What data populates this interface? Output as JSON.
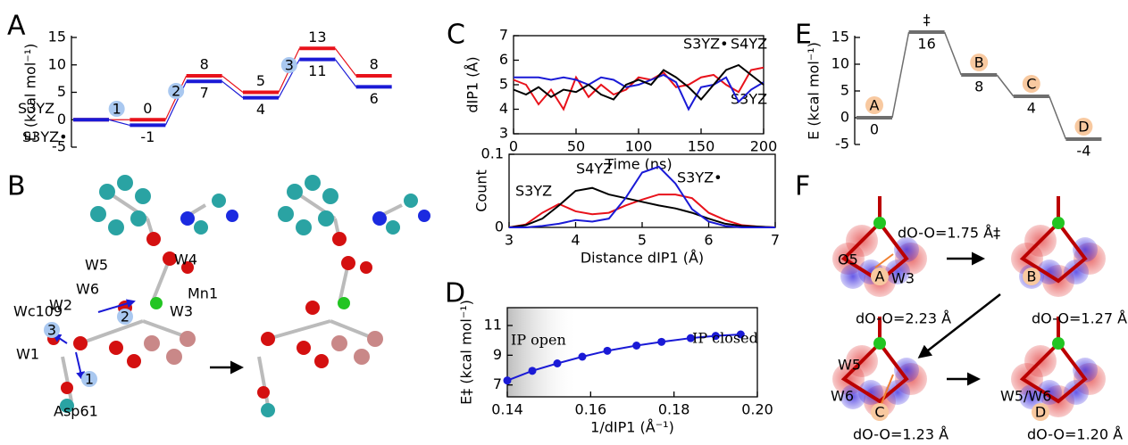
{
  "figure": {
    "panel_labels": [
      "A",
      "B",
      "C",
      "D",
      "E",
      "F"
    ],
    "panel_b": {
      "labels": [
        "W5",
        "W4",
        "W6",
        "W2",
        "Wc109",
        "W1",
        "W3",
        "Mn1",
        "Asp61"
      ],
      "steps": [
        "1",
        "2",
        "3"
      ]
    },
    "panel_f": {
      "labels": [
        "O5",
        "W3",
        "dO-O=1.75 Å‡",
        "A",
        "B",
        "dO-O=2.23 Å",
        "dO-O=1.27 Å",
        "W5",
        "W6",
        "W5/W6",
        "C",
        "D",
        "dO-O=1.23 Å",
        "dO-O=1.20 Å"
      ]
    }
  },
  "chart_data": [
    {
      "type": "energy_level",
      "y_label": "E (kcal mol⁻¹)",
      "ylim": [
        -5,
        15
      ],
      "yticks": [
        -5,
        0,
        5,
        10,
        15
      ],
      "series": [
        {
          "name": "S3YZ",
          "color": "#e8121b",
          "values": [
            0,
            0,
            8,
            5,
            13,
            8
          ]
        },
        {
          "name": "S3YZ•",
          "color": "#1a1ad6",
          "values": [
            0,
            -1,
            7,
            4,
            11,
            6
          ]
        }
      ],
      "annotations": [
        "1",
        "2",
        "3"
      ]
    },
    {
      "type": "line",
      "y_label": "dIP1 (Å)",
      "x_label": "Time (ns)",
      "xlim": [
        0,
        200
      ],
      "xticks": [
        0,
        50,
        100,
        150,
        200
      ],
      "ylim": [
        3,
        7
      ],
      "yticks": [
        3,
        4,
        5,
        6,
        7
      ],
      "x": [
        0,
        10,
        20,
        30,
        40,
        50,
        60,
        70,
        80,
        90,
        100,
        110,
        120,
        130,
        140,
        150,
        160,
        170,
        180,
        190,
        200
      ],
      "series": [
        {
          "name": "S3YZ",
          "color": "#e8121b",
          "values": [
            5.2,
            5.0,
            4.2,
            4.8,
            4.0,
            5.3,
            4.5,
            5.0,
            4.6,
            4.8,
            5.3,
            5.2,
            5.5,
            4.9,
            5.0,
            5.3,
            5.4,
            5.0,
            4.7,
            5.6,
            5.7
          ]
        },
        {
          "name": "S3YZ•",
          "color": "#1a1ad6",
          "values": [
            5.3,
            5.3,
            5.3,
            5.2,
            5.3,
            5.2,
            5.0,
            5.3,
            5.2,
            4.9,
            5.0,
            5.2,
            5.4,
            5.1,
            4.0,
            4.9,
            5.0,
            5.3,
            4.3,
            4.8,
            5.1
          ]
        },
        {
          "name": "S4YZ",
          "color": "#000000",
          "values": [
            4.8,
            4.6,
            4.9,
            4.5,
            4.8,
            4.7,
            5.0,
            4.6,
            4.4,
            5.0,
            5.2,
            5.0,
            5.6,
            5.3,
            4.9,
            4.4,
            5.0,
            5.6,
            5.8,
            5.4,
            5.0
          ]
        }
      ]
    },
    {
      "type": "line",
      "y_label": "Count",
      "x_label": "Distance dIP1 (Å)",
      "xlim": [
        3,
        7
      ],
      "xticks": [
        3,
        4,
        5,
        6,
        7
      ],
      "ylim": [
        0,
        0.1
      ],
      "yticks": [
        0,
        0.1
      ],
      "x": [
        3,
        3.25,
        3.5,
        3.75,
        4,
        4.25,
        4.5,
        4.75,
        5,
        5.25,
        5.5,
        5.75,
        6,
        6.25,
        6.5,
        6.75,
        7
      ],
      "series": [
        {
          "name": "S3YZ",
          "color": "#e8121b",
          "values": [
            0,
            0.004,
            0.02,
            0.032,
            0.022,
            0.018,
            0.02,
            0.03,
            0.038,
            0.045,
            0.045,
            0.04,
            0.02,
            0.01,
            0.003,
            0.001,
            0
          ]
        },
        {
          "name": "S4YZ",
          "color": "#000000",
          "values": [
            0,
            0.003,
            0.012,
            0.03,
            0.05,
            0.054,
            0.045,
            0.04,
            0.035,
            0.03,
            0.026,
            0.02,
            0.012,
            0.005,
            0.002,
            0.001,
            0
          ]
        },
        {
          "name": "S3YZ•",
          "color": "#1a1ad6",
          "values": [
            0,
            0,
            0.002,
            0.005,
            0.01,
            0.008,
            0.012,
            0.04,
            0.075,
            0.083,
            0.06,
            0.025,
            0.008,
            0.002,
            0,
            0,
            0
          ]
        }
      ]
    },
    {
      "type": "line",
      "markers": true,
      "y_label": "E‡ (kcal mol⁻¹)",
      "x_label": "1/dIP1 (Å⁻¹)",
      "xlim": [
        0.14,
        0.2
      ],
      "xticks": [
        0.14,
        0.16,
        0.18,
        {
          "value": 0.2,
          "label": "0.20"
        }
      ],
      "ylim": [
        6.2,
        12.2
      ],
      "yticks": [
        7,
        9,
        11
      ],
      "x": [
        0.14,
        0.146,
        0.152,
        0.158,
        0.164,
        0.171,
        0.177,
        0.184,
        0.19,
        0.196
      ],
      "series": [
        {
          "color": "#1a1ad6",
          "values": [
            7.3,
            7.95,
            8.45,
            8.9,
            9.3,
            9.65,
            9.9,
            10.15,
            10.3,
            10.4
          ]
        }
      ],
      "annotations": [
        "IP open",
        "IP closed"
      ]
    },
    {
      "type": "energy_level",
      "y_label": "E (kcal mol⁻¹)",
      "ylim": [
        -5,
        15
      ],
      "yticks": [
        -5,
        0,
        5,
        10,
        15
      ],
      "categories": [
        "A",
        "‡",
        "B",
        "C",
        "D"
      ],
      "series": [
        {
          "color": "#6e6e6e",
          "values": [
            0,
            16,
            8,
            4,
            -4
          ]
        }
      ]
    }
  ]
}
